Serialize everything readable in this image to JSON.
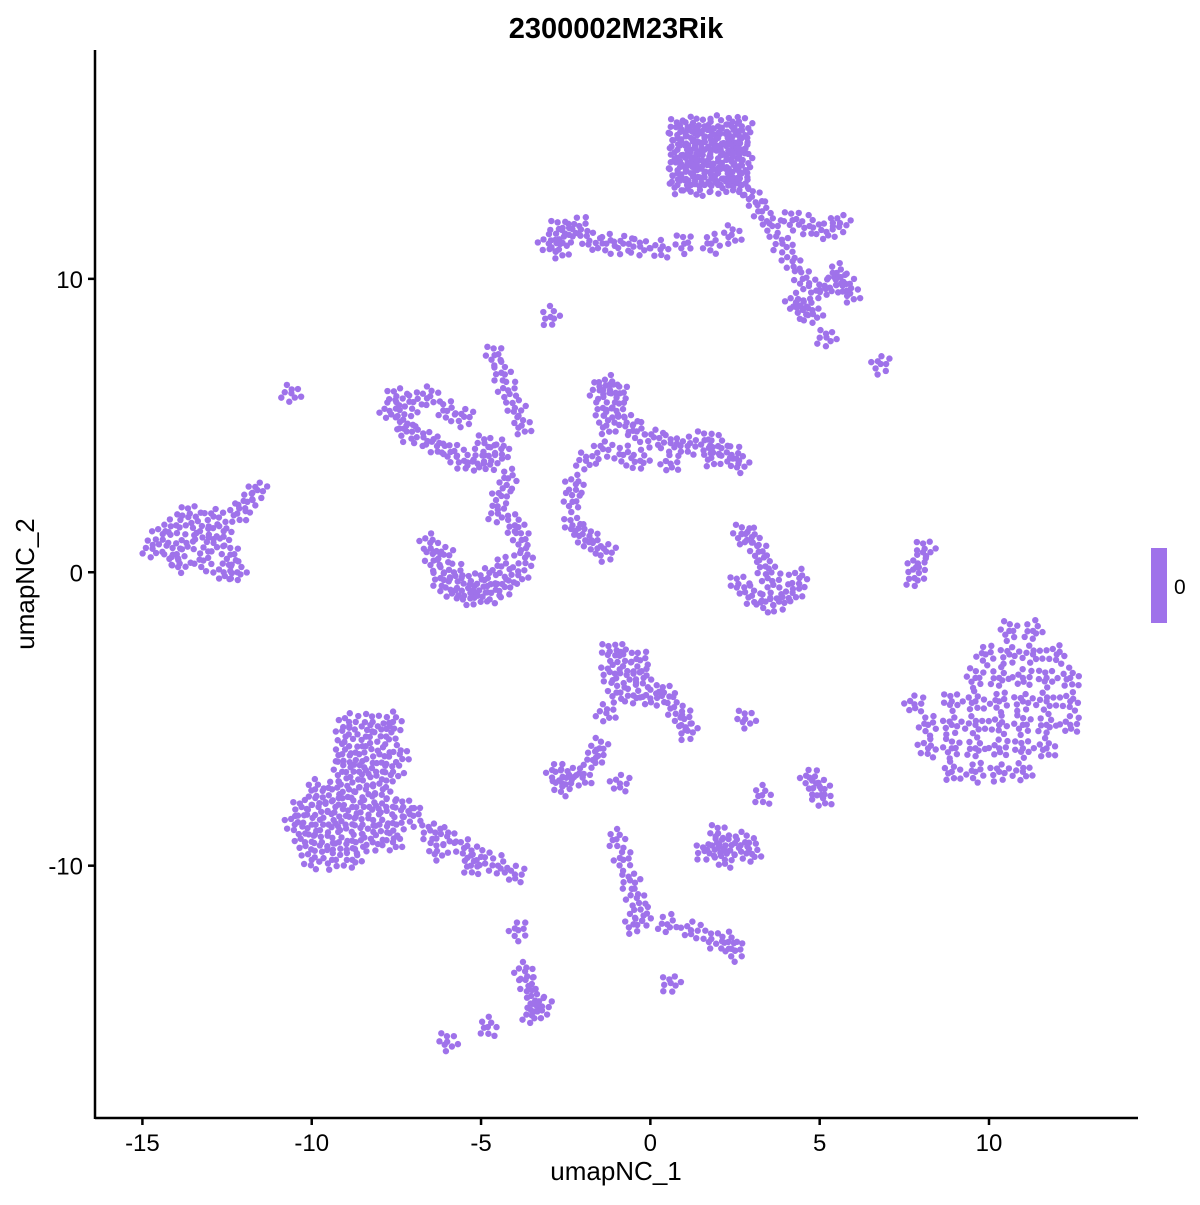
{
  "chart_data": {
    "type": "scatter",
    "title": "2300002M23Rik",
    "xlabel": "umapNC_1",
    "ylabel": "umapNC_2",
    "xlim": [
      -16.4,
      14.4
    ],
    "ylim": [
      -18.6,
      17.8
    ],
    "xticks": [
      -15,
      -10,
      -5,
      0,
      5,
      10
    ],
    "yticks": [
      -10,
      0,
      10
    ],
    "grid": false,
    "point_color": "#9F72EA",
    "legend": {
      "placement": "right",
      "type": "colorbar",
      "labels": [
        "0"
      ],
      "color": "#9F72EA"
    },
    "expression_value": 0,
    "points": [
      [
        0.8,
        13.2
      ],
      [
        1.2,
        13.2
      ],
      [
        1.6,
        13.2
      ],
      [
        2.0,
        13.2
      ],
      [
        2.4,
        13.2
      ],
      [
        2.7,
        13.2
      ],
      [
        0.8,
        13.6
      ],
      [
        1.2,
        13.6
      ],
      [
        1.6,
        13.6
      ],
      [
        2.0,
        13.6
      ],
      [
        2.4,
        13.6
      ],
      [
        2.7,
        13.6
      ],
      [
        0.8,
        14.0
      ],
      [
        1.2,
        14.0
      ],
      [
        1.6,
        14.0
      ],
      [
        2.0,
        14.0
      ],
      [
        2.4,
        14.0
      ],
      [
        2.7,
        14.0
      ],
      [
        0.8,
        14.4
      ],
      [
        1.2,
        14.4
      ],
      [
        1.6,
        14.4
      ],
      [
        2.0,
        14.4
      ],
      [
        2.4,
        14.4
      ],
      [
        2.7,
        14.4
      ],
      [
        0.8,
        14.8
      ],
      [
        1.2,
        14.8
      ],
      [
        1.6,
        14.8
      ],
      [
        2.0,
        14.8
      ],
      [
        2.4,
        14.8
      ],
      [
        2.7,
        14.8
      ],
      [
        0.8,
        15.2
      ],
      [
        1.2,
        15.2
      ],
      [
        1.6,
        15.2
      ],
      [
        2.0,
        15.2
      ],
      [
        2.4,
        15.2
      ],
      [
        2.7,
        15.2
      ],
      [
        3.0,
        12.8
      ],
      [
        3.3,
        12.3
      ],
      [
        3.6,
        11.8
      ],
      [
        3.9,
        11.2
      ],
      [
        4.2,
        10.6
      ],
      [
        4.5,
        10.0
      ],
      [
        4.9,
        9.6
      ],
      [
        5.3,
        9.7
      ],
      [
        5.7,
        9.9
      ],
      [
        5.9,
        9.5
      ],
      [
        5.5,
        10.2
      ],
      [
        4.5,
        9.0
      ],
      [
        4.8,
        8.8
      ],
      [
        4.3,
        9.2
      ],
      [
        4.2,
        12.0
      ],
      [
        4.7,
        11.8
      ],
      [
        5.2,
        11.6
      ],
      [
        5.6,
        11.9
      ],
      [
        2.4,
        11.5
      ],
      [
        1.8,
        11.2
      ],
      [
        6.8,
        7.1
      ],
      [
        5.2,
        8.0
      ],
      [
        -3.0,
        11.2
      ],
      [
        -2.7,
        11.7
      ],
      [
        -2.4,
        11.5
      ],
      [
        -2.1,
        11.8
      ],
      [
        -1.8,
        11.3
      ],
      [
        -2.7,
        11.0
      ],
      [
        -1.3,
        11.2
      ],
      [
        -0.8,
        11.2
      ],
      [
        -0.3,
        11.1
      ],
      [
        0.3,
        11.0
      ],
      [
        1.0,
        11.2
      ],
      [
        -2.95,
        8.7
      ],
      [
        -7.7,
        5.5
      ],
      [
        -7.5,
        6.0
      ],
      [
        -7.3,
        5.2
      ],
      [
        -7.0,
        5.8
      ],
      [
        -7.2,
        4.8
      ],
      [
        -6.7,
        4.6
      ],
      [
        -6.3,
        4.3
      ],
      [
        -5.9,
        4.1
      ],
      [
        -5.5,
        3.8
      ],
      [
        -5.1,
        3.7
      ],
      [
        -4.7,
        3.8
      ],
      [
        -6.5,
        6.0
      ],
      [
        -6.0,
        5.5
      ],
      [
        -5.5,
        5.3
      ],
      [
        -4.9,
        4.4
      ],
      [
        -4.4,
        4.2
      ],
      [
        -4.6,
        7.4
      ],
      [
        -4.4,
        6.8
      ],
      [
        -4.2,
        6.2
      ],
      [
        -4.0,
        5.6
      ],
      [
        -3.8,
        5.0
      ],
      [
        -4.2,
        3.2
      ],
      [
        -4.4,
        2.6
      ],
      [
        -4.5,
        2.0
      ],
      [
        -6.5,
        1.0
      ],
      [
        -6.4,
        0.4
      ],
      [
        -6.2,
        -0.2
      ],
      [
        -5.9,
        -0.6
      ],
      [
        -5.5,
        -0.8
      ],
      [
        -5.1,
        -0.8
      ],
      [
        -4.7,
        -0.7
      ],
      [
        -4.3,
        -0.5
      ],
      [
        -3.9,
        -0.1
      ],
      [
        -3.7,
        0.5
      ],
      [
        -3.8,
        1.1
      ],
      [
        -4.0,
        1.6
      ],
      [
        -5.8,
        0.0
      ],
      [
        -5.3,
        -0.3
      ],
      [
        -4.8,
        -0.2
      ],
      [
        -4.4,
        0.2
      ],
      [
        -6.1,
        0.6
      ],
      [
        -1.5,
        6.2
      ],
      [
        -1.2,
        6.4
      ],
      [
        -0.9,
        6.1
      ],
      [
        -1.4,
        5.6
      ],
      [
        -1.0,
        5.5
      ],
      [
        -0.7,
        5.1
      ],
      [
        -1.3,
        5.0
      ],
      [
        -0.4,
        4.8
      ],
      [
        0.1,
        4.6
      ],
      [
        0.6,
        4.4
      ],
      [
        1.1,
        4.3
      ],
      [
        1.6,
        4.5
      ],
      [
        2.0,
        4.3
      ],
      [
        2.4,
        4.0
      ],
      [
        2.6,
        3.7
      ],
      [
        1.8,
        3.9
      ],
      [
        -0.8,
        4.0
      ],
      [
        -1.4,
        4.2
      ],
      [
        -1.9,
        3.8
      ],
      [
        -2.2,
        3.0
      ],
      [
        -2.3,
        2.4
      ],
      [
        -0.3,
        3.8
      ],
      [
        0.6,
        3.7
      ],
      [
        -2.3,
        1.6
      ],
      [
        -2.0,
        1.3
      ],
      [
        -1.7,
        1.0
      ],
      [
        -1.3,
        0.7
      ],
      [
        -14.7,
        0.8
      ],
      [
        -14.4,
        1.3
      ],
      [
        -14.1,
        0.6
      ],
      [
        -14.0,
        1.6
      ],
      [
        -13.7,
        1.0
      ],
      [
        -13.6,
        2.0
      ],
      [
        -13.3,
        1.4
      ],
      [
        -13.2,
        0.4
      ],
      [
        -12.9,
        1.9
      ],
      [
        -12.9,
        1.0
      ],
      [
        -12.6,
        1.4
      ],
      [
        -12.4,
        0.6
      ],
      [
        -12.2,
        0.0
      ],
      [
        -12.6,
        0.0
      ],
      [
        -13.9,
        0.3
      ],
      [
        -12.2,
        2.0
      ],
      [
        -11.9,
        2.4
      ],
      [
        -11.6,
        2.8
      ],
      [
        -10.6,
        6.1
      ],
      [
        3.0,
        1.2
      ],
      [
        3.2,
        0.7
      ],
      [
        3.4,
        0.2
      ],
      [
        3.6,
        -0.3
      ],
      [
        2.6,
        -0.4
      ],
      [
        3.0,
        -0.8
      ],
      [
        3.4,
        -1.0
      ],
      [
        3.8,
        -1.0
      ],
      [
        4.2,
        -0.7
      ],
      [
        4.4,
        -0.2
      ],
      [
        2.7,
        1.3
      ],
      [
        7.8,
        -0.2
      ],
      [
        7.9,
        0.3
      ],
      [
        8.1,
        0.8
      ],
      [
        8.9,
        -6.8
      ],
      [
        9.6,
        -6.8
      ],
      [
        10.3,
        -6.8
      ],
      [
        11.0,
        -6.8
      ],
      [
        8.2,
        -6.0
      ],
      [
        8.9,
        -6.0
      ],
      [
        9.6,
        -6.0
      ],
      [
        10.3,
        -6.0
      ],
      [
        11.0,
        -6.0
      ],
      [
        11.7,
        -6.0
      ],
      [
        8.2,
        -5.2
      ],
      [
        8.9,
        -5.2
      ],
      [
        9.6,
        -5.2
      ],
      [
        10.3,
        -5.2
      ],
      [
        11.0,
        -5.2
      ],
      [
        11.7,
        -5.2
      ],
      [
        12.4,
        -5.2
      ],
      [
        8.9,
        -4.4
      ],
      [
        9.6,
        -4.4
      ],
      [
        10.3,
        -4.4
      ],
      [
        11.0,
        -4.4
      ],
      [
        11.7,
        -4.4
      ],
      [
        12.4,
        -4.4
      ],
      [
        9.6,
        -3.6
      ],
      [
        10.3,
        -3.6
      ],
      [
        11.0,
        -3.6
      ],
      [
        11.7,
        -3.6
      ],
      [
        12.4,
        -3.6
      ],
      [
        9.9,
        -2.8
      ],
      [
        10.6,
        -2.8
      ],
      [
        11.3,
        -2.8
      ],
      [
        12.0,
        -2.8
      ],
      [
        10.6,
        -2.0
      ],
      [
        11.3,
        -2.0
      ],
      [
        7.8,
        -4.5
      ],
      [
        -1.2,
        -2.7
      ],
      [
        -0.8,
        -2.8
      ],
      [
        -0.3,
        -3.0
      ],
      [
        -1.2,
        -3.4
      ],
      [
        -0.7,
        -3.5
      ],
      [
        -0.2,
        -3.6
      ],
      [
        -1.0,
        -4.1
      ],
      [
        -0.5,
        -4.2
      ],
      [
        0.0,
        -4.3
      ],
      [
        0.4,
        -4.1
      ],
      [
        0.7,
        -4.6
      ],
      [
        1.0,
        -5.0
      ],
      [
        1.1,
        -5.4
      ],
      [
        -1.3,
        -4.8
      ],
      [
        -10.0,
        -9.8
      ],
      [
        -9.4,
        -9.8
      ],
      [
        -8.8,
        -9.8
      ],
      [
        -10.2,
        -9.2
      ],
      [
        -9.7,
        -9.2
      ],
      [
        -9.2,
        -9.2
      ],
      [
        -8.7,
        -9.2
      ],
      [
        -8.2,
        -9.2
      ],
      [
        -7.6,
        -9.2
      ],
      [
        -10.5,
        -8.6
      ],
      [
        -10.0,
        -8.6
      ],
      [
        -9.5,
        -8.6
      ],
      [
        -9.0,
        -8.6
      ],
      [
        -8.5,
        -8.6
      ],
      [
        -8.0,
        -8.6
      ],
      [
        -7.5,
        -8.6
      ],
      [
        -10.3,
        -8.0
      ],
      [
        -9.8,
        -8.0
      ],
      [
        -9.3,
        -8.0
      ],
      [
        -8.8,
        -8.0
      ],
      [
        -8.3,
        -8.0
      ],
      [
        -7.8,
        -8.0
      ],
      [
        -7.3,
        -8.0
      ],
      [
        -9.9,
        -7.4
      ],
      [
        -9.4,
        -7.4
      ],
      [
        -8.9,
        -7.4
      ],
      [
        -8.4,
        -7.4
      ],
      [
        -7.9,
        -7.4
      ],
      [
        -9.1,
        -6.8
      ],
      [
        -8.6,
        -6.8
      ],
      [
        -8.1,
        -6.8
      ],
      [
        -7.6,
        -6.8
      ],
      [
        -9.1,
        -6.2
      ],
      [
        -8.6,
        -6.2
      ],
      [
        -8.0,
        -6.2
      ],
      [
        -7.4,
        -6.2
      ],
      [
        -9.0,
        -5.6
      ],
      [
        -8.4,
        -5.6
      ],
      [
        -7.8,
        -5.6
      ],
      [
        -8.9,
        -5.1
      ],
      [
        -8.2,
        -5.1
      ],
      [
        -7.6,
        -5.1
      ],
      [
        -7.0,
        -8.3
      ],
      [
        -6.5,
        -8.8
      ],
      [
        -6.0,
        -9.0
      ],
      [
        -5.5,
        -9.4
      ],
      [
        -5.0,
        -9.7
      ],
      [
        -4.5,
        -10.0
      ],
      [
        -4.0,
        -10.3
      ],
      [
        -6.3,
        -9.5
      ],
      [
        -5.3,
        -10.0
      ],
      [
        -2.8,
        -6.8
      ],
      [
        -2.4,
        -6.9
      ],
      [
        -2.0,
        -7.0
      ],
      [
        -2.6,
        -7.3
      ],
      [
        -1.5,
        -6.0
      ],
      [
        -1.7,
        -6.4
      ],
      [
        -0.9,
        -7.2
      ],
      [
        2.8,
        -5.0
      ],
      [
        3.3,
        -7.6
      ],
      [
        -3.9,
        -12.2
      ],
      [
        1.6,
        -9.5
      ],
      [
        2.0,
        -9.4
      ],
      [
        2.4,
        -9.3
      ],
      [
        2.8,
        -9.2
      ],
      [
        3.0,
        -9.6
      ],
      [
        2.2,
        -9.8
      ],
      [
        2.0,
        -8.9
      ],
      [
        -1.0,
        -9.1
      ],
      [
        -0.8,
        -9.8
      ],
      [
        -0.6,
        -10.5
      ],
      [
        -0.4,
        -11.1
      ],
      [
        -0.2,
        -11.7
      ],
      [
        -0.5,
        -12.0
      ],
      [
        0.5,
        -12.0
      ],
      [
        1.2,
        -12.2
      ],
      [
        1.8,
        -12.5
      ],
      [
        2.3,
        -12.6
      ],
      [
        2.5,
        -12.9
      ],
      [
        0.6,
        -14.0
      ],
      [
        -3.7,
        -13.6
      ],
      [
        -3.6,
        -14.1
      ],
      [
        -3.4,
        -14.6
      ],
      [
        -3.5,
        -15.1
      ],
      [
        -3.2,
        -14.8
      ],
      [
        -6.0,
        -16.0
      ],
      [
        -4.8,
        -15.5
      ],
      [
        4.7,
        -7.0
      ],
      [
        5.0,
        -7.3
      ],
      [
        5.1,
        -7.7
      ]
    ]
  }
}
